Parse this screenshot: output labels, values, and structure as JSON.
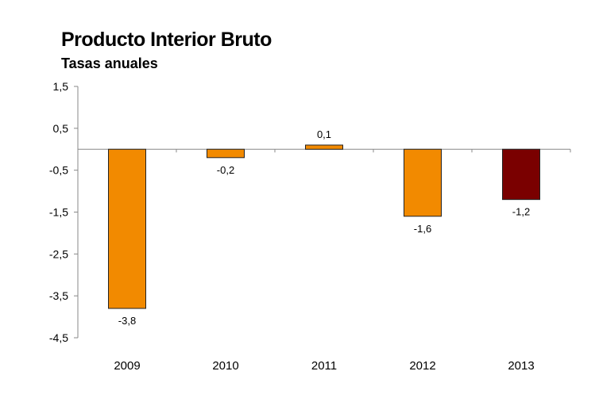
{
  "chart_data": {
    "type": "bar",
    "title": "Producto Interior Bruto",
    "subtitle": "Tasas anuales",
    "xlabel": "",
    "ylabel": "",
    "categories": [
      "2009",
      "2010",
      "2011",
      "2012",
      "2013"
    ],
    "values": [
      -3.8,
      -0.2,
      0.1,
      -1.6,
      -1.2
    ],
    "data_labels": [
      "-3,8",
      "-0,2",
      "0,1",
      "-1,6",
      "-1,2"
    ],
    "bar_colors": [
      "#F28A00",
      "#F28A00",
      "#F28A00",
      "#F28A00",
      "#7A0000"
    ],
    "ylim": [
      -4.5,
      1.5
    ],
    "yticks": [
      1.5,
      0.5,
      -0.5,
      -1.5,
      -2.5,
      -3.5,
      -4.5
    ],
    "ytick_labels": [
      "1,5",
      "0,5",
      "-0,5",
      "-1,5",
      "-2,5",
      "-3,5",
      "-4,5"
    ],
    "grid": false,
    "legend": "none"
  }
}
